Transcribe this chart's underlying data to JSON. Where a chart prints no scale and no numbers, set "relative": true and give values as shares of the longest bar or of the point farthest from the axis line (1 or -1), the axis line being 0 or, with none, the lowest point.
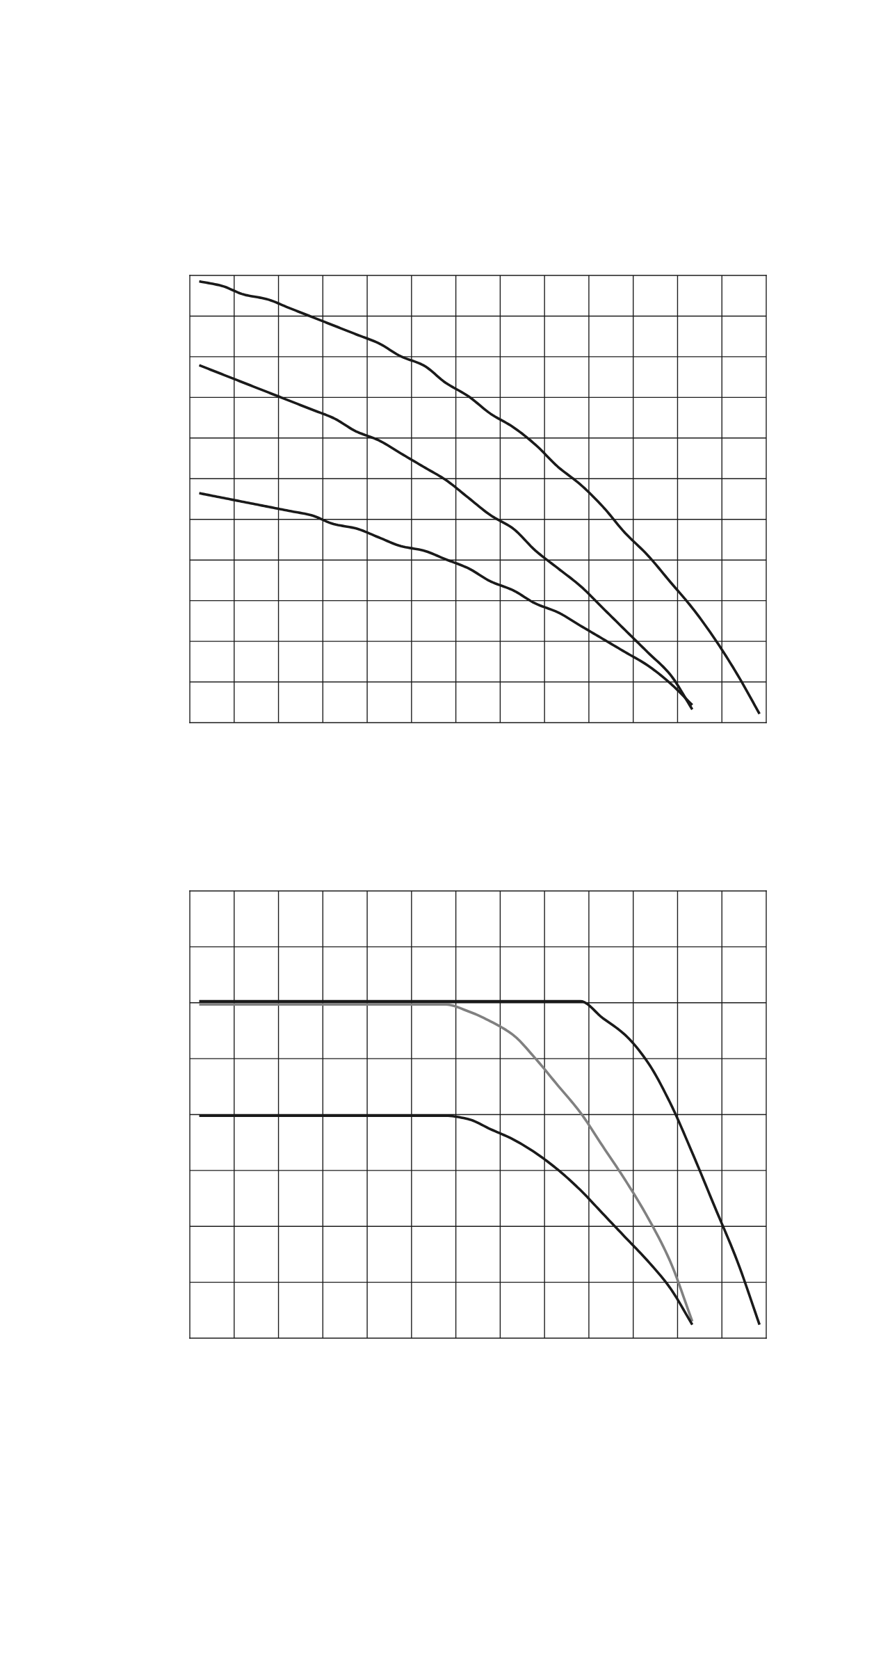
{
  "chart_data": [
    {
      "type": "line",
      "relative": true,
      "grid": true,
      "categories": [
        null,
        null,
        null,
        null,
        null,
        null,
        null,
        null,
        null,
        null,
        null,
        null,
        null,
        null,
        null,
        null,
        null,
        null,
        null,
        null,
        null,
        null,
        null,
        null,
        null,
        null
      ],
      "series": [
        {
          "color": "#1a1a1a",
          "values": [
            1.0,
            0.99,
            0.97,
            0.96,
            0.94,
            0.92,
            0.9,
            0.88,
            0.86,
            0.83,
            0.81,
            0.77,
            0.74,
            0.7,
            0.67,
            0.63,
            0.58,
            0.54,
            0.49,
            0.43,
            0.38,
            0.32,
            0.26,
            0.19,
            0.11,
            0.02
          ]
        },
        {
          "color": "#1a1a1a",
          "values": [
            0.81,
            0.79,
            0.77,
            0.75,
            0.73,
            0.71,
            0.69,
            0.66,
            0.64,
            0.61,
            0.58,
            0.55,
            0.51,
            0.47,
            0.44,
            0.39,
            0.35,
            0.31,
            0.26,
            0.21,
            0.16,
            0.11,
            0.03,
            null,
            null,
            null
          ]
        },
        {
          "color": "#1a1a1a",
          "values": [
            0.52,
            0.51,
            0.5,
            0.49,
            0.48,
            0.47,
            0.45,
            0.44,
            0.42,
            0.4,
            0.39,
            0.37,
            0.35,
            0.32,
            0.3,
            0.27,
            0.25,
            0.22,
            0.19,
            0.16,
            0.13,
            0.09,
            0.04,
            null,
            null,
            null
          ]
        }
      ]
    },
    {
      "type": "line",
      "relative": true,
      "grid": true,
      "categories": [
        null,
        null,
        null,
        null,
        null,
        null,
        null,
        null,
        null,
        null,
        null,
        null,
        null,
        null,
        null,
        null,
        null,
        null,
        null,
        null,
        null,
        null,
        null,
        null,
        null,
        null
      ],
      "series": [
        {
          "color": "#1a1a1a",
          "values": [
            1.0,
            1.0,
            1.0,
            1.0,
            1.0,
            1.0,
            1.0,
            1.0,
            1.0,
            1.0,
            1.0,
            1.0,
            1.0,
            1.0,
            1.0,
            1.0,
            1.0,
            1.0,
            0.95,
            0.9,
            0.82,
            0.7,
            0.55,
            0.39,
            0.23,
            0.04
          ]
        },
        {
          "color": "#808080",
          "values": [
            0.99,
            0.99,
            0.99,
            0.99,
            0.99,
            0.99,
            0.99,
            0.99,
            0.99,
            0.99,
            0.99,
            0.99,
            0.97,
            0.94,
            0.9,
            0.83,
            0.75,
            0.67,
            0.57,
            0.47,
            0.36,
            0.23,
            0.05,
            null,
            null,
            null
          ]
        },
        {
          "color": "#1a1a1a",
          "values": [
            0.66,
            0.66,
            0.66,
            0.66,
            0.66,
            0.66,
            0.66,
            0.66,
            0.66,
            0.66,
            0.66,
            0.66,
            0.65,
            0.62,
            0.59,
            0.55,
            0.5,
            0.44,
            0.37,
            0.3,
            0.23,
            0.15,
            0.04,
            null,
            null,
            null
          ]
        }
      ]
    }
  ]
}
